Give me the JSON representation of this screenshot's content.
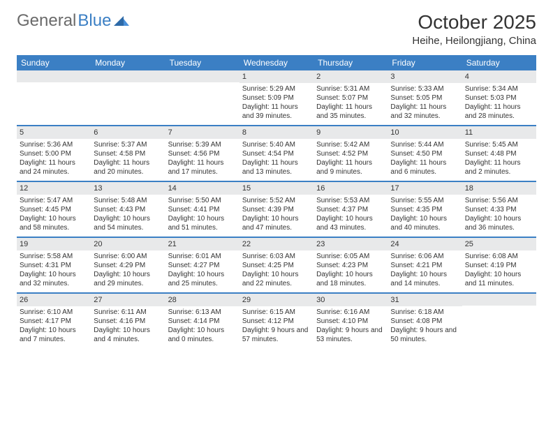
{
  "logo": {
    "text1": "General",
    "text2": "Blue"
  },
  "title": "October 2025",
  "subtitle": "Heihe, Heilongjiang, China",
  "colors": {
    "header_bg": "#3b7fc4",
    "header_text": "#ffffff",
    "daynum_bg": "#e8e9ea",
    "week_border": "#3b7fc4",
    "text": "#333333"
  },
  "font_sizes": {
    "title": 28,
    "subtitle": 15,
    "day_header": 12,
    "daynum": 11,
    "cell_text": 10
  },
  "day_headers": [
    "Sunday",
    "Monday",
    "Tuesday",
    "Wednesday",
    "Thursday",
    "Friday",
    "Saturday"
  ],
  "weeks": [
    [
      null,
      null,
      null,
      {
        "n": "1",
        "sr": "5:29 AM",
        "ss": "5:09 PM",
        "dl": "11 hours and 39 minutes."
      },
      {
        "n": "2",
        "sr": "5:31 AM",
        "ss": "5:07 PM",
        "dl": "11 hours and 35 minutes."
      },
      {
        "n": "3",
        "sr": "5:33 AM",
        "ss": "5:05 PM",
        "dl": "11 hours and 32 minutes."
      },
      {
        "n": "4",
        "sr": "5:34 AM",
        "ss": "5:03 PM",
        "dl": "11 hours and 28 minutes."
      }
    ],
    [
      {
        "n": "5",
        "sr": "5:36 AM",
        "ss": "5:00 PM",
        "dl": "11 hours and 24 minutes."
      },
      {
        "n": "6",
        "sr": "5:37 AM",
        "ss": "4:58 PM",
        "dl": "11 hours and 20 minutes."
      },
      {
        "n": "7",
        "sr": "5:39 AM",
        "ss": "4:56 PM",
        "dl": "11 hours and 17 minutes."
      },
      {
        "n": "8",
        "sr": "5:40 AM",
        "ss": "4:54 PM",
        "dl": "11 hours and 13 minutes."
      },
      {
        "n": "9",
        "sr": "5:42 AM",
        "ss": "4:52 PM",
        "dl": "11 hours and 9 minutes."
      },
      {
        "n": "10",
        "sr": "5:44 AM",
        "ss": "4:50 PM",
        "dl": "11 hours and 6 minutes."
      },
      {
        "n": "11",
        "sr": "5:45 AM",
        "ss": "4:48 PM",
        "dl": "11 hours and 2 minutes."
      }
    ],
    [
      {
        "n": "12",
        "sr": "5:47 AM",
        "ss": "4:45 PM",
        "dl": "10 hours and 58 minutes."
      },
      {
        "n": "13",
        "sr": "5:48 AM",
        "ss": "4:43 PM",
        "dl": "10 hours and 54 minutes."
      },
      {
        "n": "14",
        "sr": "5:50 AM",
        "ss": "4:41 PM",
        "dl": "10 hours and 51 minutes."
      },
      {
        "n": "15",
        "sr": "5:52 AM",
        "ss": "4:39 PM",
        "dl": "10 hours and 47 minutes."
      },
      {
        "n": "16",
        "sr": "5:53 AM",
        "ss": "4:37 PM",
        "dl": "10 hours and 43 minutes."
      },
      {
        "n": "17",
        "sr": "5:55 AM",
        "ss": "4:35 PM",
        "dl": "10 hours and 40 minutes."
      },
      {
        "n": "18",
        "sr": "5:56 AM",
        "ss": "4:33 PM",
        "dl": "10 hours and 36 minutes."
      }
    ],
    [
      {
        "n": "19",
        "sr": "5:58 AM",
        "ss": "4:31 PM",
        "dl": "10 hours and 32 minutes."
      },
      {
        "n": "20",
        "sr": "6:00 AM",
        "ss": "4:29 PM",
        "dl": "10 hours and 29 minutes."
      },
      {
        "n": "21",
        "sr": "6:01 AM",
        "ss": "4:27 PM",
        "dl": "10 hours and 25 minutes."
      },
      {
        "n": "22",
        "sr": "6:03 AM",
        "ss": "4:25 PM",
        "dl": "10 hours and 22 minutes."
      },
      {
        "n": "23",
        "sr": "6:05 AM",
        "ss": "4:23 PM",
        "dl": "10 hours and 18 minutes."
      },
      {
        "n": "24",
        "sr": "6:06 AM",
        "ss": "4:21 PM",
        "dl": "10 hours and 14 minutes."
      },
      {
        "n": "25",
        "sr": "6:08 AM",
        "ss": "4:19 PM",
        "dl": "10 hours and 11 minutes."
      }
    ],
    [
      {
        "n": "26",
        "sr": "6:10 AM",
        "ss": "4:17 PM",
        "dl": "10 hours and 7 minutes."
      },
      {
        "n": "27",
        "sr": "6:11 AM",
        "ss": "4:16 PM",
        "dl": "10 hours and 4 minutes."
      },
      {
        "n": "28",
        "sr": "6:13 AM",
        "ss": "4:14 PM",
        "dl": "10 hours and 0 minutes."
      },
      {
        "n": "29",
        "sr": "6:15 AM",
        "ss": "4:12 PM",
        "dl": "9 hours and 57 minutes."
      },
      {
        "n": "30",
        "sr": "6:16 AM",
        "ss": "4:10 PM",
        "dl": "9 hours and 53 minutes."
      },
      {
        "n": "31",
        "sr": "6:18 AM",
        "ss": "4:08 PM",
        "dl": "9 hours and 50 minutes."
      },
      null
    ]
  ],
  "labels": {
    "sunrise": "Sunrise:",
    "sunset": "Sunset:",
    "daylight": "Daylight:"
  }
}
